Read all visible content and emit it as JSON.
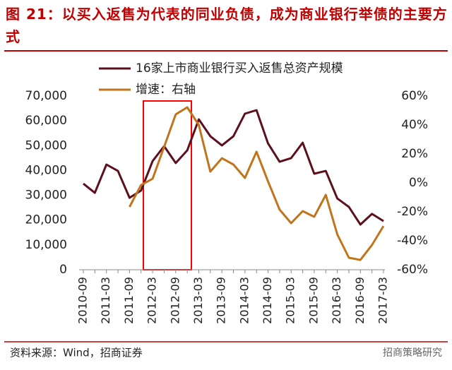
{
  "chart_data": {
    "type": "line",
    "title": "图 21：以买入返售为代表的同业负债，成为商业银行举债的主要方式",
    "source": "资料来源：Wind，招商证券",
    "watermark": "招商策略研究",
    "categories": [
      "2010-09",
      null,
      "2011-03",
      null,
      "2011-09",
      null,
      "2012-03",
      null,
      "2012-09",
      null,
      "2013-03",
      null,
      "2013-09",
      null,
      "2014-03",
      null,
      "2014-09",
      null,
      "2015-03",
      null,
      "2015-09",
      null,
      "2016-03",
      null,
      "2016-09",
      null,
      "2017-03"
    ],
    "series": [
      {
        "name": "16家上市商业银行买入返售总资产规模",
        "color": "#5c0f1d",
        "axis": "y",
        "values": [
          34700,
          31000,
          42400,
          39800,
          29000,
          31900,
          43800,
          49800,
          43000,
          48100,
          60600,
          53800,
          50100,
          53800,
          62900,
          64300,
          50900,
          43500,
          45000,
          51200,
          38700,
          39800,
          28700,
          25300,
          18200,
          22500,
          19600
        ]
      },
      {
        "name": "增速：右轴",
        "color": "#c0741c",
        "axis": "y2",
        "values": [
          null,
          null,
          null,
          null,
          -16.6,
          -1.5,
          2.9,
          24.9,
          47.3,
          52.2,
          40,
          7.8,
          17,
          12.7,
          3.4,
          21.5,
          1,
          -18.5,
          -27.8,
          -19.5,
          -23.4,
          -8.3,
          -35.6,
          -51.7,
          -53.2,
          -42.9,
          -29.8
        ]
      }
    ],
    "ylim": [
      0,
      70000
    ],
    "yticks": [
      0,
      {
        "value": 10000,
        "label": "10,000"
      },
      {
        "value": 20000,
        "label": "20,000"
      },
      {
        "value": 30000,
        "label": "30,000"
      },
      {
        "value": 40000,
        "label": "40,000"
      },
      {
        "value": 50000,
        "label": "50,000"
      },
      {
        "value": 60000,
        "label": "60,000"
      },
      {
        "value": 70000,
        "label": "70,000"
      }
    ],
    "y2lim": [
      -60,
      60
    ],
    "y2ticks": [
      {
        "value": -60,
        "label": "-60%"
      },
      {
        "value": -40,
        "label": "-40%"
      },
      {
        "value": -20,
        "label": "-20%"
      },
      {
        "value": 0,
        "label": "0%"
      },
      {
        "value": 20,
        "label": "20%"
      },
      {
        "value": 40,
        "label": "40%"
      },
      {
        "value": 60,
        "label": "60%"
      }
    ],
    "legend": "top"
  }
}
